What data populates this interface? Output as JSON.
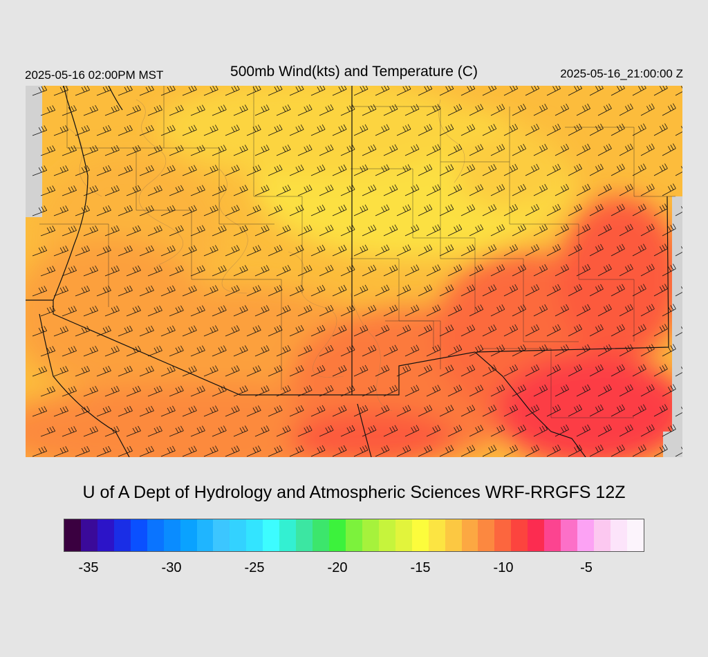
{
  "header": {
    "local_time": "2025-05-16 02:00PM MST",
    "title": "500mb Wind(kts) and Temperature (C)",
    "utc_time": "2025-05-16_21:00:00 Z"
  },
  "credit": "U of A Dept of Hydrology and Atmospheric Sciences WRF-RRGFS 12Z",
  "colorbar": {
    "colors": [
      "#3a0040",
      "#3a0a99",
      "#2c14c8",
      "#1a2ee6",
      "#0a50ff",
      "#0a74ff",
      "#0a8cff",
      "#0aa2ff",
      "#1fb5ff",
      "#3cc6ff",
      "#33d2ff",
      "#33e4ff",
      "#3dfcff",
      "#33f0d2",
      "#3ce6a2",
      "#3ce66c",
      "#3cf23c",
      "#7cf23c",
      "#a6f23c",
      "#c6f43c",
      "#e2f43c",
      "#fcfc3c",
      "#fce442",
      "#fcc842",
      "#fca842",
      "#fc8840",
      "#fc663e",
      "#fc443e",
      "#fc2c50",
      "#fc4490",
      "#fc70c8",
      "#fca2f4",
      "#fcc8f0",
      "#fce4fa",
      "#fcf4fc"
    ],
    "ticks": [
      "-35",
      "-30",
      "-25",
      "-20",
      "-15",
      "-10",
      "-5"
    ]
  }
}
